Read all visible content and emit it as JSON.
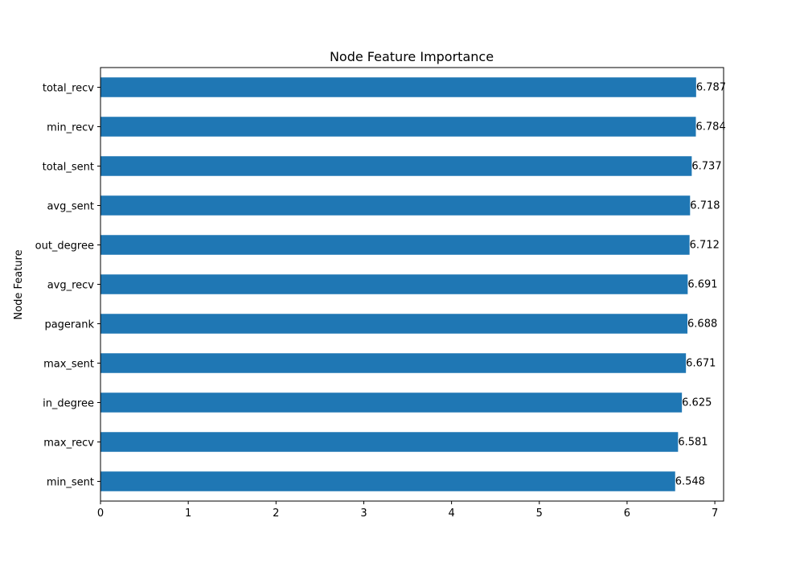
{
  "chart_data": {
    "type": "bar",
    "orientation": "horizontal",
    "title": "Node Feature Importance",
    "xlabel": "",
    "ylabel": "Node Feature",
    "categories": [
      "total_recv",
      "min_recv",
      "total_sent",
      "avg_sent",
      "out_degree",
      "avg_recv",
      "pagerank",
      "max_sent",
      "in_degree",
      "max_recv",
      "min_sent"
    ],
    "values": [
      6.787,
      6.784,
      6.737,
      6.718,
      6.712,
      6.691,
      6.688,
      6.671,
      6.625,
      6.581,
      6.548
    ],
    "data_labels": [
      "6.787",
      "6.784",
      "6.737",
      "6.718",
      "6.712",
      "6.691",
      "6.688",
      "6.671",
      "6.625",
      "6.581",
      "6.548"
    ],
    "xticks": [
      0,
      1,
      2,
      3,
      4,
      5,
      6,
      7
    ],
    "xtick_labels": [
      "0",
      "1",
      "2",
      "3",
      "4",
      "5",
      "6",
      "7"
    ],
    "xlim": [
      0,
      7.1
    ],
    "grid": false,
    "bar_color": "#1f77b4"
  }
}
